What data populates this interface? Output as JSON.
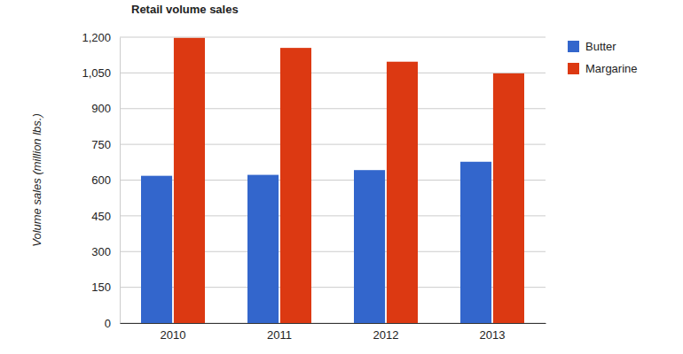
{
  "chart_data": {
    "type": "bar",
    "title": "Retail volume sales",
    "y_label": "Volume sales (million lbs.)",
    "categories": [
      "2010",
      "2011",
      "2012",
      "2013"
    ],
    "series": [
      {
        "name": "Butter",
        "color": "#3366cc",
        "values": [
          618,
          622,
          642,
          677
        ]
      },
      {
        "name": "Margarine",
        "color": "#dc3912",
        "values": [
          1197,
          1155,
          1097,
          1048
        ]
      }
    ],
    "ylim": [
      0,
      1200
    ],
    "yticks": [
      0,
      150,
      300,
      450,
      600,
      750,
      900,
      {
        "value": 1050,
        "label": "1,050"
      },
      {
        "value": 1200,
        "label": "1,200"
      }
    ],
    "grid": true,
    "legend": "right"
  }
}
